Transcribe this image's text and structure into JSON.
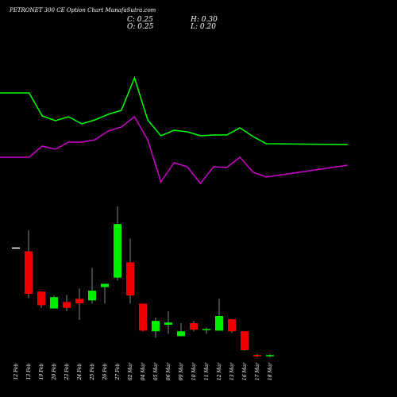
{
  "chart_data": {
    "type": "candlestick",
    "title": "PETRONET 300 CE Option Chart MunafaSutra.com",
    "ohlc": {
      "open_label": "O:",
      "open": "0.25",
      "high_label": "H:",
      "high": "0.30",
      "low_label": "L:",
      "low": "0.20",
      "close_label": "C:",
      "close": "0.25"
    },
    "x": [
      "12 Feb",
      "13 Feb",
      "19 Feb",
      "20 Feb",
      "23 Feb",
      "24 Feb",
      "25 Feb",
      "26 Feb",
      "27 Feb",
      "02 Mar",
      "04 Mar",
      "05 Mar",
      "06 Mar",
      "09 Mar",
      "10 Mar",
      "11 Mar",
      "12 Mar",
      "13 Mar",
      "16 Mar",
      "17 Mar",
      "18 Mar"
    ],
    "candles": [
      {
        "o": 3.56,
        "h": 3.56,
        "l": 3.56,
        "c": 3.56,
        "dir": "flat"
      },
      {
        "o": 3.46,
        "h": 4.1,
        "l": 2.02,
        "c": 2.15,
        "dir": "down"
      },
      {
        "o": 2.22,
        "h": 2.22,
        "l": 1.72,
        "c": 1.8,
        "dir": "down"
      },
      {
        "o": 1.7,
        "h": 2.1,
        "l": 1.7,
        "c": 2.05,
        "dir": "up"
      },
      {
        "o": 1.9,
        "h": 2.12,
        "l": 1.62,
        "c": 1.72,
        "dir": "down"
      },
      {
        "o": 2.0,
        "h": 2.32,
        "l": 1.35,
        "c": 1.86,
        "dir": "down"
      },
      {
        "o": 1.95,
        "h": 2.95,
        "l": 1.85,
        "c": 2.25,
        "dir": "up"
      },
      {
        "o": 2.36,
        "h": 2.46,
        "l": 1.85,
        "c": 2.46,
        "dir": "up"
      },
      {
        "o": 2.65,
        "h": 4.84,
        "l": 2.56,
        "c": 4.3,
        "dir": "up"
      },
      {
        "o": 3.12,
        "h": 3.85,
        "l": 1.85,
        "c": 2.1,
        "dir": "down"
      },
      {
        "o": 1.85,
        "h": 1.85,
        "l": 1.0,
        "c": 1.02,
        "dir": "down"
      },
      {
        "o": 1.0,
        "h": 1.42,
        "l": 0.8,
        "c": 1.32,
        "dir": "up"
      },
      {
        "o": 1.2,
        "h": 1.62,
        "l": 0.92,
        "c": 1.27,
        "dir": "up"
      },
      {
        "o": 0.85,
        "h": 1.25,
        "l": 0.85,
        "c": 1.0,
        "dir": "up"
      },
      {
        "o": 1.25,
        "h": 1.32,
        "l": 1.0,
        "c": 1.05,
        "dir": "down"
      },
      {
        "o": 1.02,
        "h": 1.12,
        "l": 0.92,
        "c": 1.05,
        "dir": "up"
      },
      {
        "o": 1.02,
        "h": 2.0,
        "l": 1.02,
        "c": 1.47,
        "dir": "up"
      },
      {
        "o": 1.37,
        "h": 1.37,
        "l": 0.95,
        "c": 1.0,
        "dir": "down"
      },
      {
        "o": 1.0,
        "h": 1.0,
        "l": 0.4,
        "c": 0.42,
        "dir": "down"
      },
      {
        "o": 0.27,
        "h": 0.3,
        "l": 0.2,
        "c": 0.23,
        "dir": "down"
      },
      {
        "o": 0.25,
        "h": 0.3,
        "l": 0.2,
        "c": 0.25,
        "dir": "up"
      }
    ],
    "series": [
      {
        "values": [
          117,
          117,
          146,
          152,
          147,
          156,
          151,
          144,
          139,
          98,
          151,
          171,
          164,
          166,
          171,
          170,
          170,
          161,
          172,
          181,
          182
        ]
      },
      {
        "values": [
          198,
          198,
          184,
          188,
          179,
          179,
          176,
          165,
          160,
          147,
          176,
          229,
          205,
          210,
          231,
          210,
          211,
          198,
          217,
          223,
          208
        ]
      }
    ],
    "colors": {
      "up": "#00ee00",
      "down": "#ee0000",
      "flat": "#ffffff",
      "wick": "#888888",
      "line1": "#00ff00",
      "line2": "#cc00cc",
      "background": "#000000",
      "text": "#ffffff"
    }
  }
}
